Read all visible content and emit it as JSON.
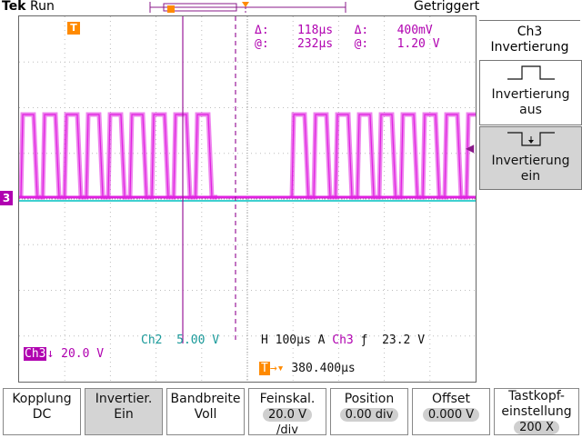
{
  "header": {
    "brand": "Tek",
    "run_state": "Run",
    "trigger_status": "Getriggert"
  },
  "cursor_readout": {
    "delta_time_label": "Δ:",
    "delta_time": "118µs",
    "delta_volt_label": "Δ:",
    "delta_volt": "400mV",
    "at_time_label": "@:",
    "at_time": "232µs",
    "at_volt_label": "@:",
    "at_volt": "1.20 V"
  },
  "markers": {
    "trigger_marker": "T",
    "channel_ground": "3"
  },
  "waveform_info": {
    "ch2_label": "Ch2",
    "ch2_scale": "5.00 V",
    "timebase_label": "H",
    "timebase": "100µs",
    "acq_label": "A",
    "trigger_source": "Ch3",
    "trigger_level": "23.2 V",
    "ch3_label": "Ch3",
    "ch3_scale": "20.0 V",
    "trigger_position": "380.400µs"
  },
  "side_menu": {
    "title_line1": "Ch3",
    "title_line2": "Invertierung",
    "option_off_line1": "Invertierung",
    "option_off_line2": "aus",
    "option_on_line1": "Invertierung",
    "option_on_line2": "ein"
  },
  "bottom_menu": [
    {
      "line1": "Kopplung",
      "line2": "DC"
    },
    {
      "line1": "Invertier.",
      "line2": "Ein"
    },
    {
      "line1": "Bandbreite",
      "line2": "Voll"
    },
    {
      "line1": "Feinskal.",
      "value": "20.0 V",
      "line3": "/div"
    },
    {
      "line1": "Position",
      "value": "0.00 div"
    },
    {
      "line1": "Offset",
      "value": "0.000 V"
    },
    {
      "line1": "Tastkopf-",
      "line2": "einstellung",
      "value": "200 X"
    }
  ],
  "colors": {
    "ch3": "#e020e0",
    "ch2": "#3fd0d0",
    "cursor": "#9a1a9a",
    "trigger": "#ff8a00"
  }
}
